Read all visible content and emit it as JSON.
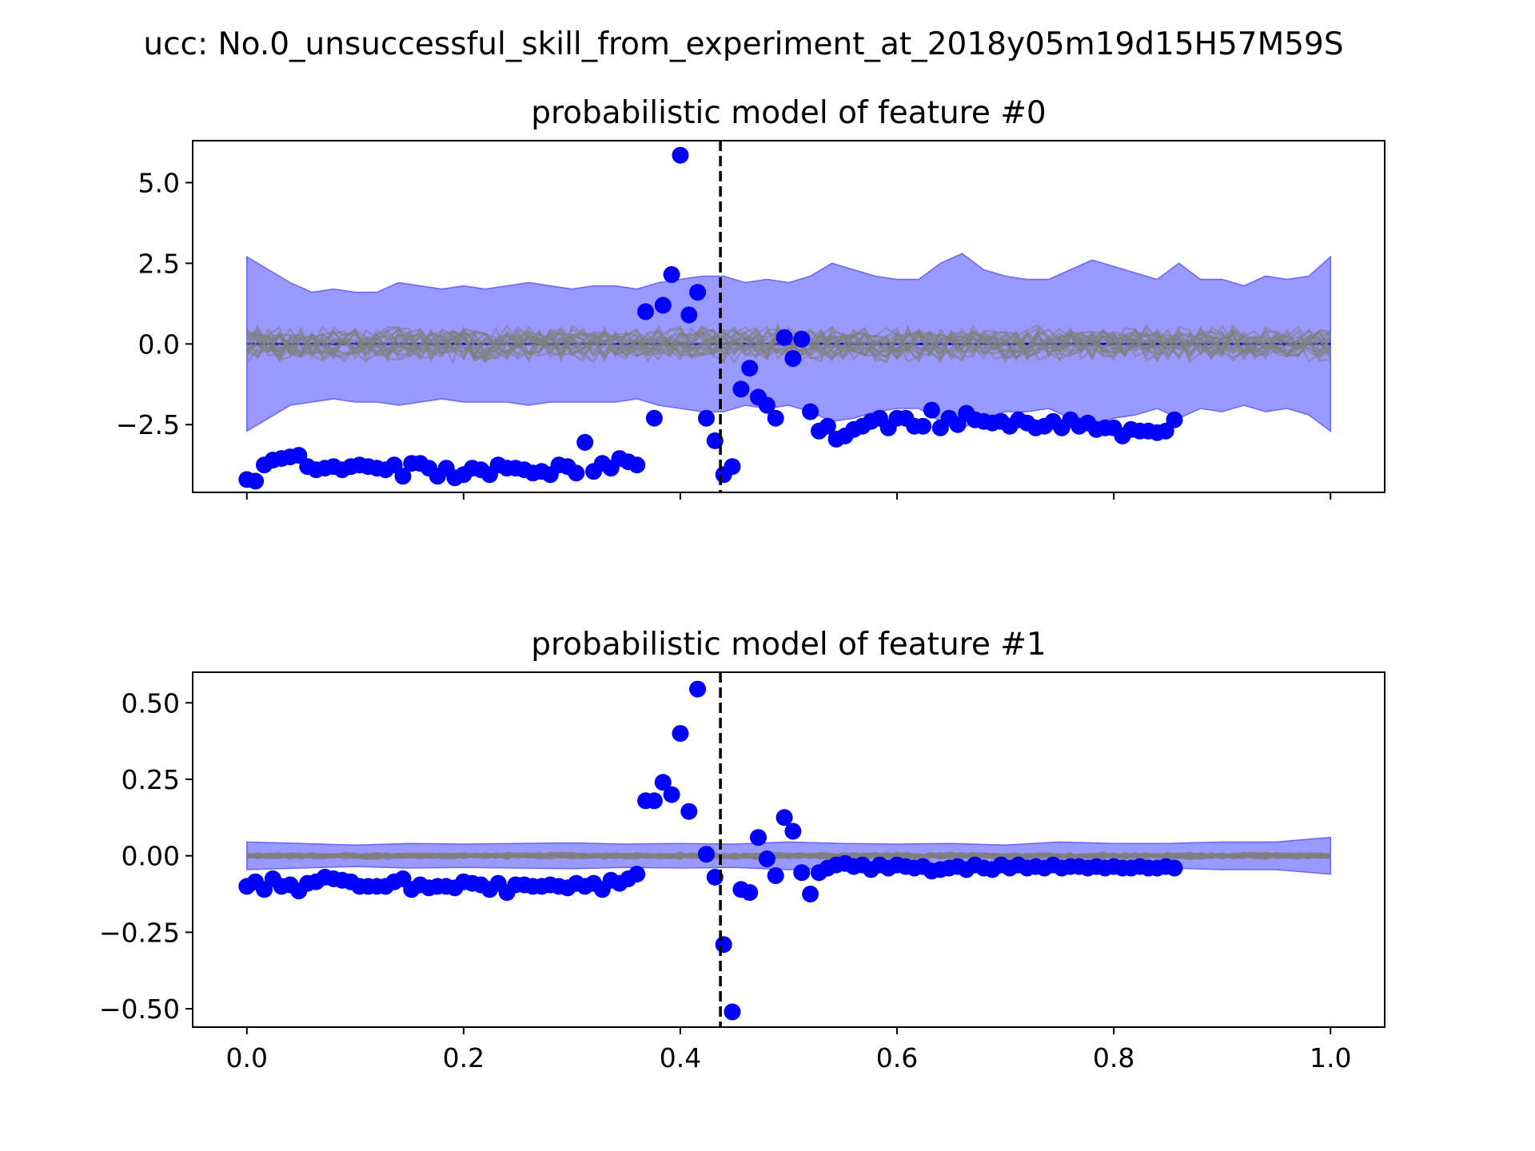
{
  "figure": {
    "suptitle": "ucc: No.0_unsuccessful_skill_from_experiment_at_2018y05m19d15H57M59S",
    "colors": {
      "point": "#0000ff",
      "band_fill": "#9999ff",
      "band_edge": "#6a6aff",
      "trajectories": "#808080",
      "mean_line": "#0000cc",
      "marker_line": "#000000"
    }
  },
  "chart_data": [
    {
      "type": "scatter",
      "title": "probabilistic model of feature #0",
      "xlabel": "",
      "ylabel": "",
      "xlim": [
        -0.05,
        1.05
      ],
      "ylim": [
        -4.6,
        6.3
      ],
      "xticks": [
        0.0,
        0.2,
        0.4,
        0.6,
        0.8,
        1.0
      ],
      "xtick_labels_visible": false,
      "yticks": [
        5.0,
        2.5,
        0.0,
        -2.5
      ],
      "ytick_labels": [
        "5.0",
        "2.5",
        "0.0",
        "−2.5"
      ],
      "vline_x": 0.437,
      "band_x": [
        0.0,
        0.02,
        0.04,
        0.06,
        0.08,
        0.1,
        0.12,
        0.14,
        0.16,
        0.18,
        0.2,
        0.22,
        0.24,
        0.26,
        0.28,
        0.3,
        0.32,
        0.34,
        0.36,
        0.38,
        0.4,
        0.42,
        0.44,
        0.46,
        0.48,
        0.5,
        0.52,
        0.54,
        0.56,
        0.58,
        0.6,
        0.62,
        0.64,
        0.66,
        0.68,
        0.7,
        0.72,
        0.74,
        0.76,
        0.78,
        0.8,
        0.82,
        0.84,
        0.86,
        0.88,
        0.9,
        0.92,
        0.94,
        0.96,
        0.98,
        1.0
      ],
      "band_upper": [
        2.7,
        2.3,
        1.9,
        1.6,
        1.7,
        1.6,
        1.6,
        1.9,
        1.8,
        1.7,
        1.8,
        1.7,
        1.8,
        1.9,
        1.8,
        1.7,
        1.8,
        1.8,
        1.7,
        1.9,
        2.0,
        2.1,
        2.1,
        1.9,
        2.0,
        1.9,
        2.1,
        2.5,
        2.3,
        2.1,
        2.0,
        2.0,
        2.5,
        2.8,
        2.3,
        2.1,
        2.0,
        2.0,
        2.3,
        2.6,
        2.4,
        2.2,
        2.0,
        2.5,
        2.0,
        2.0,
        1.8,
        2.1,
        2.0,
        2.1,
        2.7
      ],
      "band_lower": [
        -2.7,
        -2.3,
        -1.9,
        -1.8,
        -1.7,
        -1.8,
        -1.8,
        -1.9,
        -1.8,
        -1.7,
        -1.8,
        -1.8,
        -1.8,
        -1.9,
        -1.8,
        -1.8,
        -1.8,
        -1.8,
        -1.7,
        -1.9,
        -2.0,
        -2.1,
        -2.1,
        -1.9,
        -2.0,
        -1.9,
        -2.1,
        -2.4,
        -2.3,
        -2.1,
        -2.0,
        -2.0,
        -2.4,
        -2.6,
        -2.3,
        -2.1,
        -2.1,
        -2.0,
        -2.3,
        -2.5,
        -2.3,
        -2.2,
        -2.0,
        -2.3,
        -2.0,
        -2.1,
        -1.9,
        -2.1,
        -2.0,
        -2.2,
        -2.7
      ],
      "trajectory_amplitude": 0.6,
      "points": [
        [
          0.0,
          -4.2
        ],
        [
          0.008,
          -4.25
        ],
        [
          0.016,
          -3.75
        ],
        [
          0.024,
          -3.6
        ],
        [
          0.032,
          -3.55
        ],
        [
          0.04,
          -3.5
        ],
        [
          0.048,
          -3.45
        ],
        [
          0.056,
          -3.8
        ],
        [
          0.064,
          -3.9
        ],
        [
          0.072,
          -3.85
        ],
        [
          0.08,
          -3.8
        ],
        [
          0.088,
          -3.9
        ],
        [
          0.096,
          -3.8
        ],
        [
          0.104,
          -3.75
        ],
        [
          0.112,
          -3.8
        ],
        [
          0.12,
          -3.85
        ],
        [
          0.128,
          -3.9
        ],
        [
          0.136,
          -3.75
        ],
        [
          0.144,
          -4.1
        ],
        [
          0.152,
          -3.7
        ],
        [
          0.16,
          -3.7
        ],
        [
          0.168,
          -3.85
        ],
        [
          0.176,
          -4.1
        ],
        [
          0.184,
          -3.85
        ],
        [
          0.192,
          -4.15
        ],
        [
          0.2,
          -4.05
        ],
        [
          0.208,
          -3.85
        ],
        [
          0.216,
          -3.9
        ],
        [
          0.224,
          -4.05
        ],
        [
          0.232,
          -3.75
        ],
        [
          0.24,
          -3.85
        ],
        [
          0.248,
          -3.85
        ],
        [
          0.256,
          -3.9
        ],
        [
          0.264,
          -4.0
        ],
        [
          0.272,
          -3.95
        ],
        [
          0.28,
          -4.05
        ],
        [
          0.288,
          -3.75
        ],
        [
          0.296,
          -3.8
        ],
        [
          0.304,
          -4.0
        ],
        [
          0.312,
          -3.05
        ],
        [
          0.32,
          -3.95
        ],
        [
          0.328,
          -3.7
        ],
        [
          0.336,
          -3.85
        ],
        [
          0.344,
          -3.55
        ],
        [
          0.352,
          -3.65
        ],
        [
          0.36,
          -3.75
        ],
        [
          0.368,
          1.0
        ],
        [
          0.376,
          -2.3
        ],
        [
          0.384,
          1.2
        ],
        [
          0.392,
          2.15
        ],
        [
          0.4,
          5.85
        ],
        [
          0.408,
          0.9
        ],
        [
          0.416,
          1.6
        ],
        [
          0.424,
          -2.3
        ],
        [
          0.432,
          -3.0
        ],
        [
          0.44,
          -4.05
        ],
        [
          0.448,
          -3.8
        ],
        [
          0.456,
          -1.4
        ],
        [
          0.464,
          -0.75
        ],
        [
          0.472,
          -1.65
        ],
        [
          0.48,
          -1.9
        ],
        [
          0.488,
          -2.3
        ],
        [
          0.496,
          0.2
        ],
        [
          0.504,
          -0.45
        ],
        [
          0.512,
          0.15
        ],
        [
          0.52,
          -2.1
        ],
        [
          0.528,
          -2.7
        ],
        [
          0.536,
          -2.55
        ],
        [
          0.544,
          -2.95
        ],
        [
          0.552,
          -2.85
        ],
        [
          0.56,
          -2.65
        ],
        [
          0.568,
          -2.55
        ],
        [
          0.576,
          -2.4
        ],
        [
          0.584,
          -2.3
        ],
        [
          0.592,
          -2.6
        ],
        [
          0.6,
          -2.3
        ],
        [
          0.608,
          -2.3
        ],
        [
          0.616,
          -2.55
        ],
        [
          0.624,
          -2.55
        ],
        [
          0.632,
          -2.05
        ],
        [
          0.64,
          -2.6
        ],
        [
          0.648,
          -2.3
        ],
        [
          0.656,
          -2.5
        ],
        [
          0.664,
          -2.15
        ],
        [
          0.672,
          -2.35
        ],
        [
          0.68,
          -2.4
        ],
        [
          0.688,
          -2.45
        ],
        [
          0.696,
          -2.4
        ],
        [
          0.704,
          -2.55
        ],
        [
          0.712,
          -2.35
        ],
        [
          0.72,
          -2.45
        ],
        [
          0.728,
          -2.6
        ],
        [
          0.736,
          -2.55
        ],
        [
          0.744,
          -2.4
        ],
        [
          0.752,
          -2.6
        ],
        [
          0.76,
          -2.35
        ],
        [
          0.768,
          -2.55
        ],
        [
          0.776,
          -2.45
        ],
        [
          0.784,
          -2.65
        ],
        [
          0.792,
          -2.6
        ],
        [
          0.8,
          -2.6
        ],
        [
          0.808,
          -2.85
        ],
        [
          0.816,
          -2.65
        ],
        [
          0.824,
          -2.7
        ],
        [
          0.832,
          -2.7
        ],
        [
          0.84,
          -2.75
        ],
        [
          0.848,
          -2.7
        ],
        [
          0.856,
          -2.35
        ]
      ]
    },
    {
      "type": "scatter",
      "title": "probabilistic model of feature #1",
      "xlabel": "",
      "ylabel": "",
      "xlim": [
        -0.05,
        1.05
      ],
      "ylim": [
        -0.56,
        0.6
      ],
      "xticks": [
        0.0,
        0.2,
        0.4,
        0.6,
        0.8,
        1.0
      ],
      "xtick_labels": [
        "0.0",
        "0.2",
        "0.4",
        "0.6",
        "0.8",
        "1.0"
      ],
      "xtick_labels_visible": true,
      "yticks": [
        0.5,
        0.25,
        0.0,
        -0.25,
        -0.5
      ],
      "ytick_labels": [
        "0.50",
        "0.25",
        "0.00",
        "−0.25",
        "−0.50"
      ],
      "vline_x": 0.437,
      "band_x": [
        0.0,
        0.05,
        0.1,
        0.15,
        0.2,
        0.25,
        0.3,
        0.35,
        0.4,
        0.45,
        0.5,
        0.55,
        0.6,
        0.65,
        0.7,
        0.75,
        0.8,
        0.85,
        0.9,
        0.95,
        1.0
      ],
      "band_upper": [
        0.045,
        0.04,
        0.035,
        0.04,
        0.038,
        0.04,
        0.042,
        0.038,
        0.04,
        0.038,
        0.045,
        0.04,
        0.038,
        0.04,
        0.035,
        0.045,
        0.04,
        0.04,
        0.045,
        0.045,
        0.06
      ],
      "band_lower": [
        -0.045,
        -0.04,
        -0.035,
        -0.04,
        -0.038,
        -0.04,
        -0.042,
        -0.038,
        -0.04,
        -0.038,
        -0.045,
        -0.04,
        -0.038,
        -0.04,
        -0.035,
        -0.045,
        -0.04,
        -0.04,
        -0.045,
        -0.045,
        -0.06
      ],
      "trajectory_amplitude": 0.012,
      "points": [
        [
          0.0,
          -0.1
        ],
        [
          0.008,
          -0.085
        ],
        [
          0.016,
          -0.11
        ],
        [
          0.024,
          -0.075
        ],
        [
          0.032,
          -0.1
        ],
        [
          0.04,
          -0.095
        ],
        [
          0.048,
          -0.115
        ],
        [
          0.056,
          -0.09
        ],
        [
          0.064,
          -0.085
        ],
        [
          0.072,
          -0.07
        ],
        [
          0.08,
          -0.075
        ],
        [
          0.088,
          -0.08
        ],
        [
          0.096,
          -0.085
        ],
        [
          0.104,
          -0.1
        ],
        [
          0.112,
          -0.1
        ],
        [
          0.12,
          -0.1
        ],
        [
          0.128,
          -0.1
        ],
        [
          0.136,
          -0.085
        ],
        [
          0.144,
          -0.075
        ],
        [
          0.152,
          -0.11
        ],
        [
          0.16,
          -0.095
        ],
        [
          0.168,
          -0.105
        ],
        [
          0.176,
          -0.1
        ],
        [
          0.184,
          -0.1
        ],
        [
          0.192,
          -0.105
        ],
        [
          0.2,
          -0.085
        ],
        [
          0.208,
          -0.09
        ],
        [
          0.216,
          -0.095
        ],
        [
          0.224,
          -0.11
        ],
        [
          0.232,
          -0.09
        ],
        [
          0.24,
          -0.12
        ],
        [
          0.248,
          -0.095
        ],
        [
          0.256,
          -0.095
        ],
        [
          0.264,
          -0.1
        ],
        [
          0.272,
          -0.1
        ],
        [
          0.28,
          -0.095
        ],
        [
          0.288,
          -0.1
        ],
        [
          0.296,
          -0.105
        ],
        [
          0.304,
          -0.09
        ],
        [
          0.312,
          -0.1
        ],
        [
          0.32,
          -0.09
        ],
        [
          0.328,
          -0.11
        ],
        [
          0.336,
          -0.08
        ],
        [
          0.344,
          -0.09
        ],
        [
          0.352,
          -0.075
        ],
        [
          0.36,
          -0.06
        ],
        [
          0.368,
          0.18
        ],
        [
          0.376,
          0.18
        ],
        [
          0.384,
          0.24
        ],
        [
          0.392,
          0.2
        ],
        [
          0.4,
          0.4
        ],
        [
          0.408,
          0.145
        ],
        [
          0.416,
          0.545
        ],
        [
          0.424,
          0.005
        ],
        [
          0.432,
          -0.07
        ],
        [
          0.44,
          -0.29
        ],
        [
          0.448,
          -0.51
        ],
        [
          0.456,
          -0.11
        ],
        [
          0.464,
          -0.12
        ],
        [
          0.472,
          0.06
        ],
        [
          0.48,
          -0.01
        ],
        [
          0.488,
          -0.065
        ],
        [
          0.496,
          0.125
        ],
        [
          0.504,
          0.08
        ],
        [
          0.512,
          -0.055
        ],
        [
          0.52,
          -0.125
        ],
        [
          0.528,
          -0.055
        ],
        [
          0.536,
          -0.04
        ],
        [
          0.544,
          -0.03
        ],
        [
          0.552,
          -0.025
        ],
        [
          0.56,
          -0.035
        ],
        [
          0.568,
          -0.03
        ],
        [
          0.576,
          -0.045
        ],
        [
          0.584,
          -0.03
        ],
        [
          0.592,
          -0.04
        ],
        [
          0.6,
          -0.03
        ],
        [
          0.608,
          -0.035
        ],
        [
          0.616,
          -0.04
        ],
        [
          0.624,
          -0.035
        ],
        [
          0.632,
          -0.05
        ],
        [
          0.64,
          -0.045
        ],
        [
          0.648,
          -0.04
        ],
        [
          0.656,
          -0.035
        ],
        [
          0.664,
          -0.045
        ],
        [
          0.672,
          -0.03
        ],
        [
          0.68,
          -0.04
        ],
        [
          0.688,
          -0.045
        ],
        [
          0.696,
          -0.03
        ],
        [
          0.704,
          -0.04
        ],
        [
          0.712,
          -0.03
        ],
        [
          0.72,
          -0.04
        ],
        [
          0.728,
          -0.035
        ],
        [
          0.736,
          -0.04
        ],
        [
          0.744,
          -0.03
        ],
        [
          0.752,
          -0.04
        ],
        [
          0.76,
          -0.035
        ],
        [
          0.768,
          -0.035
        ],
        [
          0.776,
          -0.04
        ],
        [
          0.784,
          -0.035
        ],
        [
          0.792,
          -0.04
        ],
        [
          0.8,
          -0.035
        ],
        [
          0.808,
          -0.04
        ],
        [
          0.816,
          -0.04
        ],
        [
          0.824,
          -0.035
        ],
        [
          0.832,
          -0.04
        ],
        [
          0.84,
          -0.04
        ],
        [
          0.848,
          -0.035
        ],
        [
          0.856,
          -0.04
        ]
      ]
    }
  ]
}
